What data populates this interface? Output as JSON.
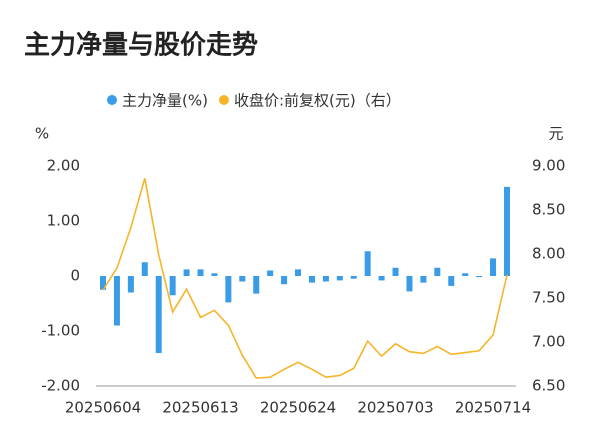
{
  "chart_data": {
    "type": "bar-line",
    "title": "主力净量与股价走势",
    "y_unit": "%",
    "y2_unit": "元",
    "categories": [
      "20250604",
      null,
      null,
      null,
      null,
      null,
      null,
      "20250613",
      null,
      null,
      null,
      null,
      null,
      null,
      "20250624",
      null,
      null,
      null,
      null,
      null,
      null,
      "20250703",
      null,
      null,
      null,
      null,
      null,
      null,
      "20250714",
      null
    ],
    "series": [
      {
        "name": "主力净量(%)",
        "type": "bar",
        "color": "#3a9be6",
        "values": [
          -0.25,
          -0.9,
          -0.3,
          0.25,
          -1.4,
          -0.35,
          0.12,
          0.12,
          0.05,
          -0.48,
          -0.1,
          -0.32,
          0.1,
          -0.15,
          0.12,
          -0.12,
          -0.1,
          -0.08,
          -0.05,
          0.45,
          -0.08,
          0.15,
          -0.28,
          -0.12,
          0.15,
          -0.18,
          0.05,
          -0.02,
          0.32,
          1.62
        ]
      },
      {
        "name": "收盘价:前复权(元)（右）",
        "type": "line",
        "axis": "y2",
        "color": "#f5b52a",
        "values": [
          7.59,
          7.84,
          8.3,
          8.86,
          7.99,
          7.34,
          7.6,
          7.28,
          7.36,
          7.19,
          6.85,
          6.59,
          6.6,
          6.69,
          6.77,
          6.69,
          6.6,
          6.62,
          6.7,
          7.01,
          6.84,
          6.98,
          6.89,
          6.87,
          6.95,
          6.86,
          6.88,
          6.9,
          7.08,
          7.76
        ]
      }
    ],
    "ylim": [
      -2,
      2
    ],
    "yticks": [
      {
        "value": -2,
        "label": "-2.00"
      },
      {
        "value": -1,
        "label": "-1.00"
      },
      0,
      {
        "value": 1,
        "label": "1.00"
      },
      {
        "value": 2,
        "label": "2.00"
      }
    ],
    "y2lim": [
      6.5,
      9
    ],
    "y2ticks": [
      {
        "value": 6.5,
        "label": "6.50"
      },
      {
        "value": 7,
        "label": "7.00"
      },
      {
        "value": 7.5,
        "label": "7.50"
      },
      {
        "value": 8,
        "label": "8.00"
      },
      {
        "value": 8.5,
        "label": "8.50"
      },
      {
        "value": 9,
        "label": "9.00"
      }
    ]
  }
}
